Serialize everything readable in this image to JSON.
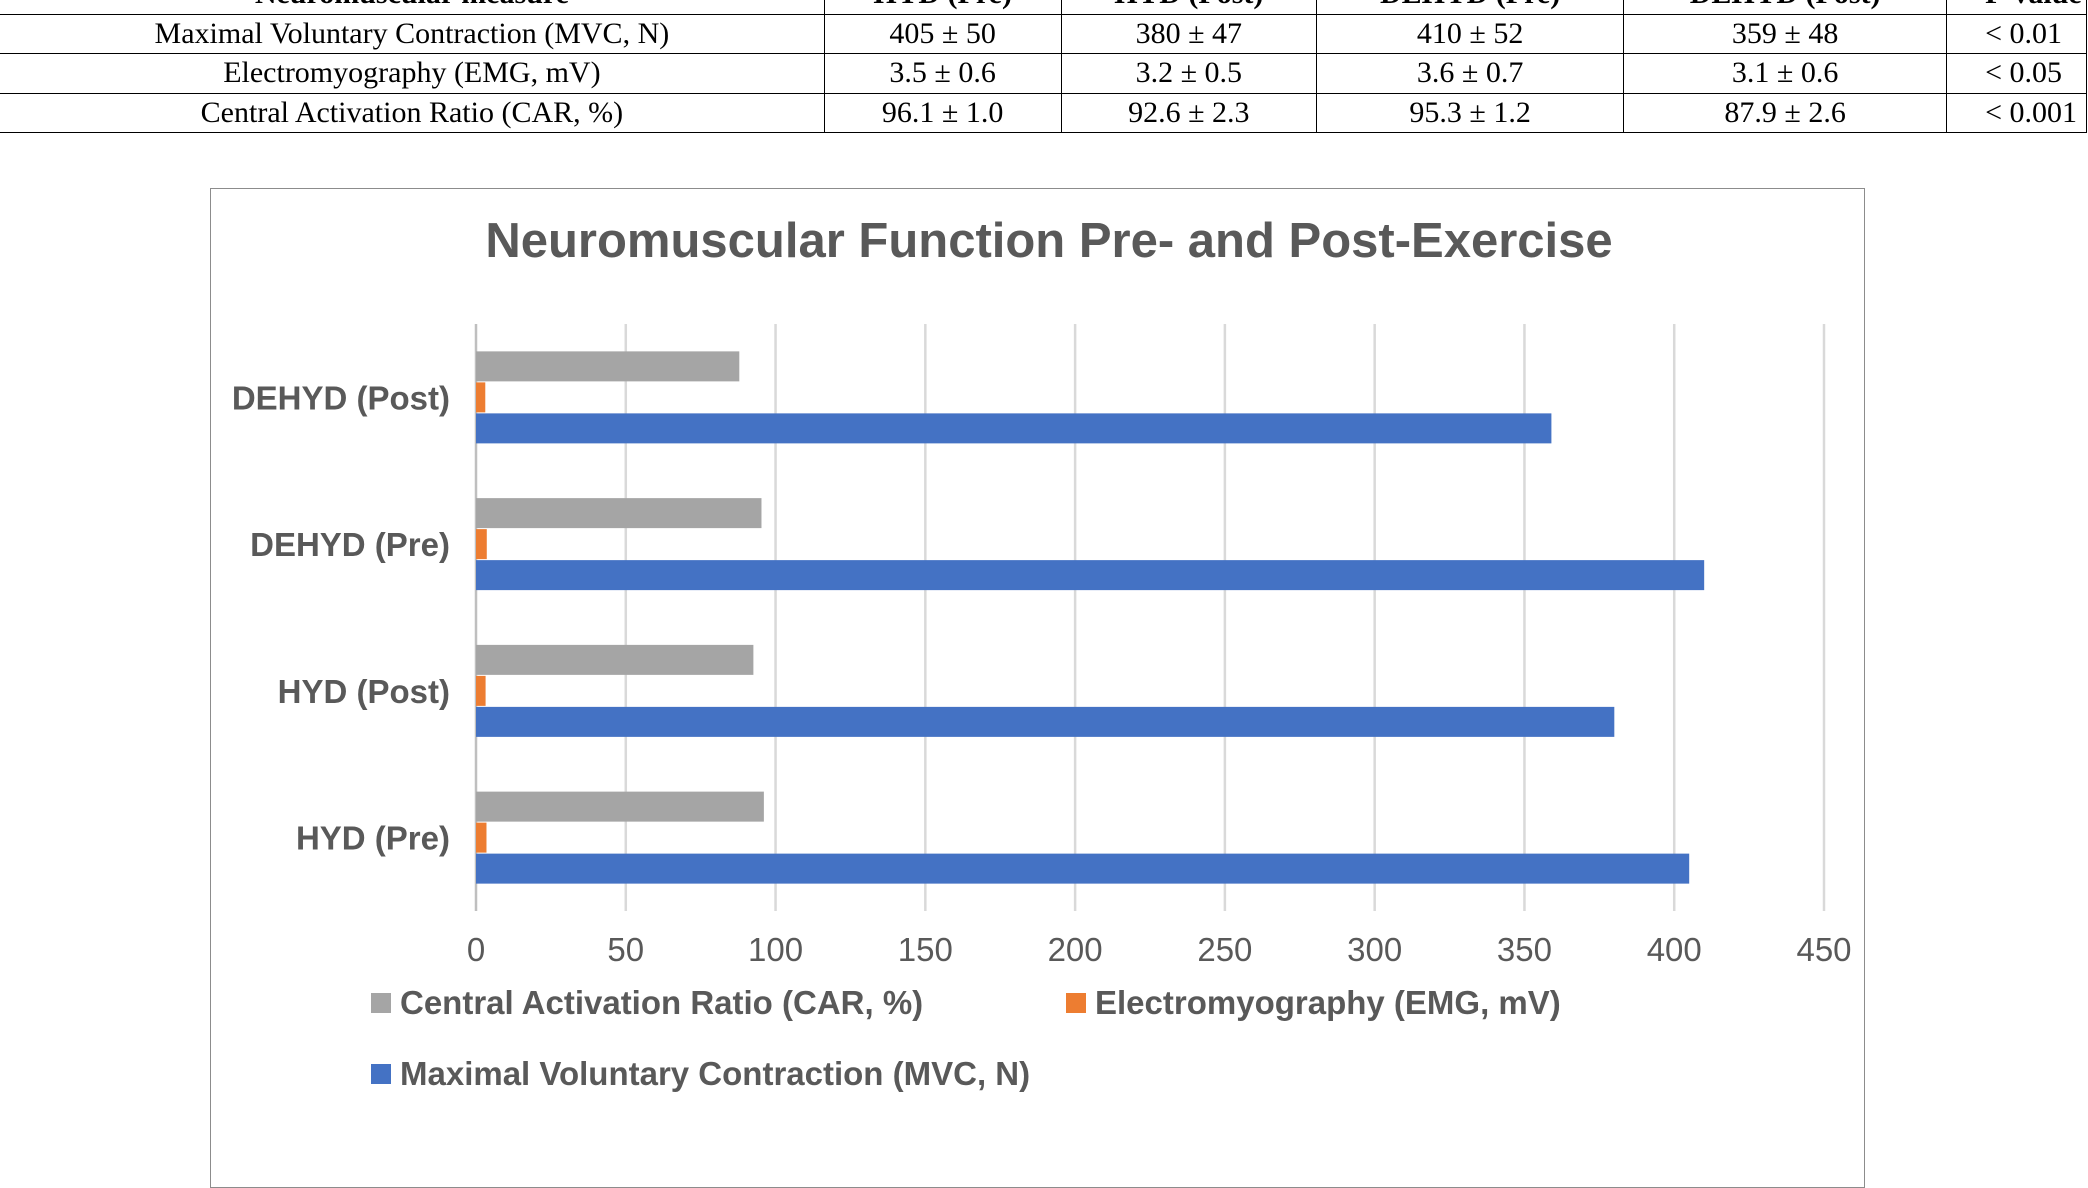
{
  "table": {
    "headers": [
      "Neuromuscular measure",
      "HYD (Pre)",
      "HYD (Post)",
      "DEHYD (Pre)",
      "DEHYD (Post)",
      "P-value"
    ],
    "rows": [
      [
        "Maximal Voluntary Contraction (MVC, N)",
        "405 ± 50",
        "380 ± 47",
        "410 ± 52",
        "359 ± 48",
        "< 0.01"
      ],
      [
        "Electromyography (EMG, mV)",
        "3.5 ± 0.6",
        "3.2 ± 0.5",
        "3.6 ± 0.7",
        "3.1 ± 0.6",
        "< 0.05"
      ],
      [
        "Central Activation Ratio (CAR, %)",
        "96.1 ± 1.0",
        "92.6 ± 2.3",
        "95.3 ± 1.2",
        "87.9 ± 2.6",
        "< 0.001"
      ]
    ]
  },
  "chart_data": {
    "type": "bar",
    "orientation": "horizontal",
    "title": "Neuromuscular Function Pre- and Post-Exercise",
    "categories": [
      "HYD (Pre)",
      "HYD (Post)",
      "DEHYD (Pre)",
      "DEHYD (Post)"
    ],
    "series": [
      {
        "name": "Central Activation Ratio (CAR, %)",
        "color": "#A5A5A5",
        "values": [
          96.1,
          92.6,
          95.3,
          87.9
        ]
      },
      {
        "name": "Electromyography (EMG, mV)",
        "color": "#ED7D31",
        "values": [
          3.5,
          3.2,
          3.6,
          3.1
        ]
      },
      {
        "name": "Maximal Voluntary Contraction (MVC, N)",
        "color": "#4472C4",
        "values": [
          405,
          380,
          410,
          359
        ]
      }
    ],
    "xlim": [
      0,
      450
    ],
    "xticks": [
      0,
      50,
      100,
      150,
      200,
      250,
      300,
      350,
      400,
      450
    ],
    "grid": "vertical",
    "legend_position": "bottom"
  }
}
